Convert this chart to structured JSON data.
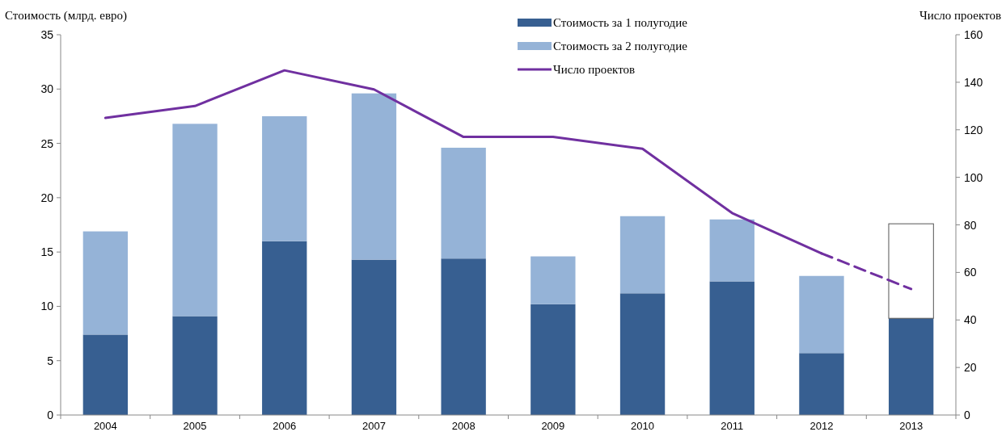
{
  "chart_data": {
    "type": "bar",
    "stacked": true,
    "ylabel": "Стоимость (млрд. евро)",
    "y2label": "Число проектов",
    "categories": [
      "2004",
      "2005",
      "2006",
      "2007",
      "2008",
      "2009",
      "2010",
      "2011",
      "2012",
      "2013"
    ],
    "series": [
      {
        "name": "Стоимость за 1 полугодие",
        "color": "#375f91",
        "values": [
          7.4,
          9.1,
          16.0,
          14.3,
          14.4,
          10.2,
          11.2,
          12.3,
          5.7,
          8.9
        ]
      },
      {
        "name": "Стоимость за 2 полугодие",
        "color": "#95b3d7",
        "colors": [
          "#95b3d7",
          "#95b3d7",
          "#95b3d7",
          "#95b3d7",
          "#95b3d7",
          "#95b3d7",
          "#95b3d7",
          "#95b3d7",
          "#95b3d7",
          "#ffffff"
        ],
        "values": [
          9.5,
          17.7,
          11.5,
          15.3,
          10.2,
          4.4,
          7.1,
          5.7,
          7.1,
          8.7
        ]
      },
      {
        "name": "Число проектов",
        "type": "line",
        "axis": "y2",
        "color": "#7030a0",
        "line_style": "solid",
        "values": [
          125,
          130,
          145,
          137,
          117,
          117,
          112,
          85,
          68,
          null
        ]
      },
      {
        "type": "line",
        "axis": "y2",
        "color": "#7030a0",
        "line_style": "dashed",
        "values": [
          null,
          null,
          null,
          null,
          null,
          null,
          null,
          null,
          68,
          53
        ]
      }
    ],
    "ylim": [
      0,
      35
    ],
    "yticks": [
      0,
      5,
      10,
      15,
      20,
      25,
      30,
      35
    ],
    "y2lim": [
      0,
      160
    ],
    "y2ticks": [
      0,
      20,
      40,
      60,
      80,
      100,
      120,
      140,
      160
    ],
    "grid": false,
    "legend": "top",
    "marker": "none"
  }
}
